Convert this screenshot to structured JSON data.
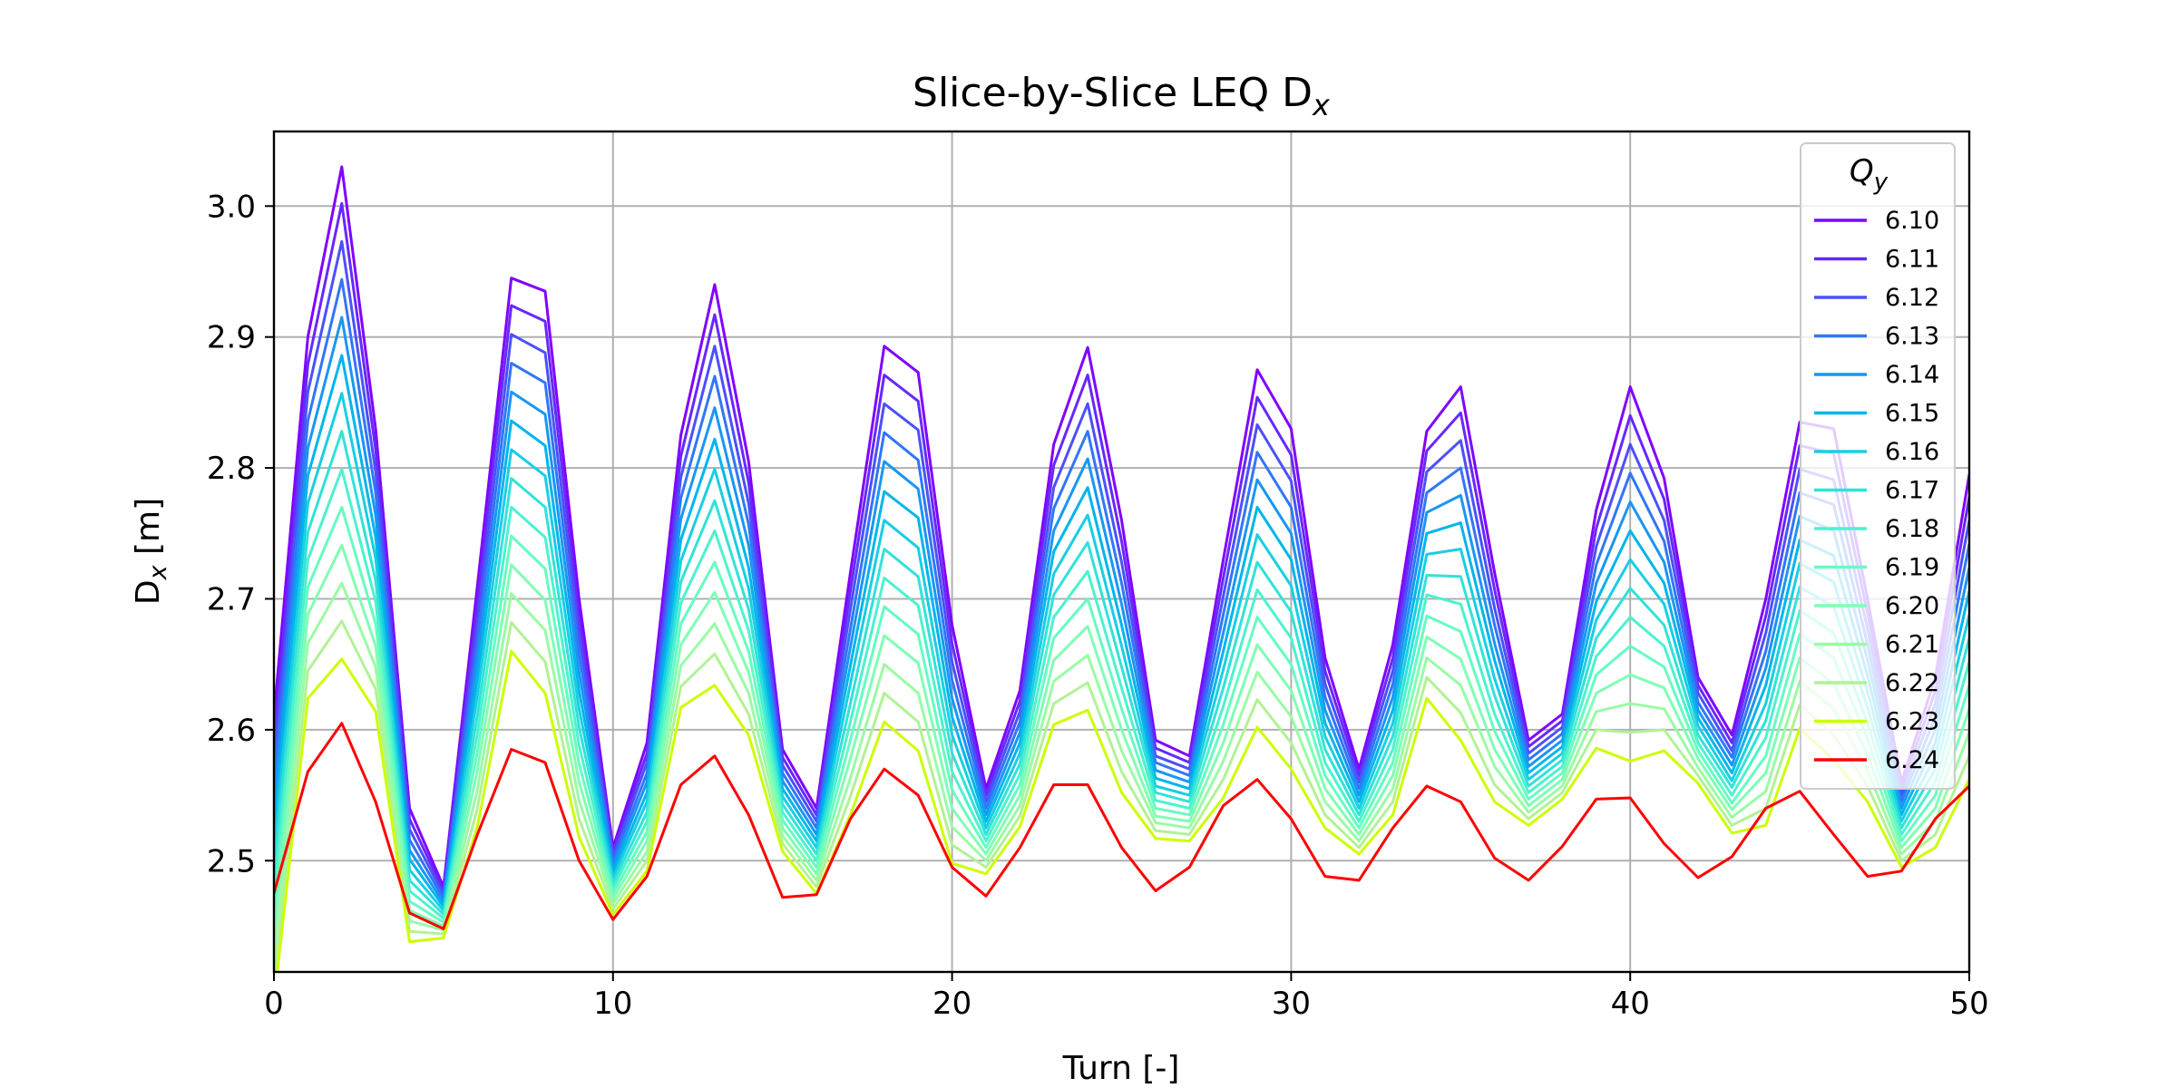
{
  "chart_data": {
    "type": "line",
    "title": "Slice-by-Slice LEQ D",
    "title_sub": "x",
    "xlabel": "Turn [-]",
    "ylabel_main": "D",
    "ylabel_sub": "x",
    "ylabel_unit": " [m]",
    "xlim": [
      0,
      50
    ],
    "ylim": [
      2.415,
      3.057
    ],
    "x_ticks": [
      0,
      10,
      20,
      30,
      40,
      50
    ],
    "y_ticks": [
      2.5,
      2.6,
      2.7,
      2.8,
      2.9,
      3.0
    ],
    "x_tick_labels": [
      "0",
      "10",
      "20",
      "30",
      "40",
      "50"
    ],
    "y_tick_labels": [
      "2.5",
      "2.6",
      "2.7",
      "2.8",
      "2.9",
      "3.0"
    ],
    "grid": true,
    "legend": {
      "position": "top-right",
      "title_main": "Q",
      "title_sub": "y"
    },
    "x": [
      0,
      1,
      2,
      3,
      4,
      5,
      6,
      7,
      8,
      9,
      10,
      11,
      12,
      13,
      14,
      15,
      16,
      17,
      18,
      19,
      20,
      21,
      22,
      23,
      24,
      25,
      26,
      27,
      28,
      29,
      30,
      31,
      32,
      33,
      34,
      35,
      36,
      37,
      38,
      39,
      40,
      41,
      42,
      43,
      44,
      45,
      46,
      47,
      48,
      49,
      50
    ],
    "series": [
      {
        "name": "6.10",
        "color": "#8000ff",
        "values": [
          2.61,
          2.9,
          3.03,
          2.83,
          2.54,
          2.48,
          2.71,
          2.945,
          2.935,
          2.7,
          2.51,
          2.59,
          2.825,
          2.94,
          2.805,
          2.585,
          2.54,
          2.72,
          2.893,
          2.873,
          2.68,
          2.555,
          2.63,
          2.818,
          2.892,
          2.76,
          2.592,
          2.58,
          2.73,
          2.875,
          2.83,
          2.655,
          2.57,
          2.665,
          2.828,
          2.862,
          2.72,
          2.592,
          2.612,
          2.768,
          2.862,
          2.792,
          2.64,
          2.596,
          2.7,
          2.835,
          2.83,
          2.7,
          2.56,
          2.64,
          2.795
        ]
      },
      {
        "name": "6.11",
        "color": "#6629fe",
        "values": [
          2.593,
          2.879,
          3.002,
          2.814,
          2.532,
          2.477,
          2.697,
          2.924,
          2.912,
          2.686,
          2.507,
          2.582,
          2.809,
          2.917,
          2.789,
          2.579,
          2.535,
          2.706,
          2.871,
          2.851,
          2.666,
          2.55,
          2.622,
          2.802,
          2.871,
          2.744,
          2.586,
          2.575,
          2.716,
          2.854,
          2.81,
          2.645,
          2.565,
          2.655,
          2.813,
          2.842,
          2.707,
          2.587,
          2.607,
          2.754,
          2.84,
          2.776,
          2.634,
          2.59,
          2.687,
          2.817,
          2.811,
          2.689,
          2.555,
          2.63,
          2.778
        ]
      },
      {
        "name": "6.12",
        "color": "#4c50fc",
        "values": [
          2.576,
          2.858,
          2.973,
          2.797,
          2.524,
          2.474,
          2.682,
          2.902,
          2.888,
          2.672,
          2.503,
          2.575,
          2.793,
          2.893,
          2.773,
          2.573,
          2.53,
          2.692,
          2.849,
          2.829,
          2.652,
          2.545,
          2.614,
          2.785,
          2.849,
          2.728,
          2.58,
          2.57,
          2.702,
          2.833,
          2.79,
          2.635,
          2.56,
          2.645,
          2.797,
          2.821,
          2.693,
          2.582,
          2.602,
          2.74,
          2.818,
          2.76,
          2.628,
          2.584,
          2.674,
          2.799,
          2.791,
          2.677,
          2.55,
          2.62,
          2.76
        ]
      },
      {
        "name": "6.13",
        "color": "#3176f8",
        "values": [
          2.56,
          2.836,
          2.944,
          2.781,
          2.516,
          2.471,
          2.668,
          2.88,
          2.865,
          2.658,
          2.499,
          2.567,
          2.777,
          2.87,
          2.757,
          2.567,
          2.525,
          2.677,
          2.827,
          2.806,
          2.638,
          2.54,
          2.606,
          2.769,
          2.828,
          2.712,
          2.575,
          2.565,
          2.688,
          2.812,
          2.77,
          2.625,
          2.555,
          2.635,
          2.781,
          2.8,
          2.68,
          2.577,
          2.597,
          2.726,
          2.796,
          2.744,
          2.621,
          2.579,
          2.66,
          2.781,
          2.772,
          2.665,
          2.545,
          2.61,
          2.742
        ]
      },
      {
        "name": "6.14",
        "color": "#1996f3",
        "values": [
          2.543,
          2.815,
          2.915,
          2.764,
          2.508,
          2.468,
          2.654,
          2.858,
          2.841,
          2.644,
          2.495,
          2.56,
          2.761,
          2.846,
          2.741,
          2.561,
          2.52,
          2.663,
          2.805,
          2.784,
          2.624,
          2.535,
          2.598,
          2.752,
          2.807,
          2.696,
          2.569,
          2.56,
          2.674,
          2.791,
          2.75,
          2.615,
          2.55,
          2.625,
          2.766,
          2.779,
          2.666,
          2.572,
          2.592,
          2.712,
          2.774,
          2.728,
          2.615,
          2.573,
          2.647,
          2.763,
          2.752,
          2.653,
          2.54,
          2.6,
          2.724
        ]
      },
      {
        "name": "6.15",
        "color": "#00b5eb",
        "values": [
          2.526,
          2.794,
          2.886,
          2.747,
          2.501,
          2.465,
          2.64,
          2.836,
          2.817,
          2.63,
          2.491,
          2.552,
          2.745,
          2.822,
          2.724,
          2.555,
          2.515,
          2.649,
          2.782,
          2.762,
          2.61,
          2.53,
          2.59,
          2.736,
          2.785,
          2.68,
          2.563,
          2.555,
          2.66,
          2.77,
          2.73,
          2.605,
          2.545,
          2.615,
          2.75,
          2.758,
          2.653,
          2.567,
          2.587,
          2.698,
          2.752,
          2.712,
          2.609,
          2.567,
          2.634,
          2.745,
          2.733,
          2.641,
          2.535,
          2.59,
          2.706
        ]
      },
      {
        "name": "6.16",
        "color": "#19cee3",
        "values": [
          2.509,
          2.773,
          2.857,
          2.731,
          2.493,
          2.462,
          2.626,
          2.814,
          2.794,
          2.616,
          2.487,
          2.545,
          2.729,
          2.799,
          2.708,
          2.549,
          2.51,
          2.635,
          2.76,
          2.739,
          2.596,
          2.525,
          2.582,
          2.719,
          2.764,
          2.664,
          2.557,
          2.55,
          2.646,
          2.749,
          2.71,
          2.595,
          2.54,
          2.605,
          2.734,
          2.738,
          2.639,
          2.562,
          2.582,
          2.684,
          2.73,
          2.696,
          2.603,
          2.561,
          2.62,
          2.727,
          2.713,
          2.629,
          2.53,
          2.58,
          2.688
        ]
      },
      {
        "name": "6.17",
        "color": "#31e2d9",
        "values": [
          2.493,
          2.751,
          2.828,
          2.714,
          2.485,
          2.459,
          2.611,
          2.792,
          2.77,
          2.602,
          2.483,
          2.537,
          2.713,
          2.775,
          2.692,
          2.543,
          2.505,
          2.62,
          2.738,
          2.717,
          2.582,
          2.52,
          2.574,
          2.703,
          2.743,
          2.648,
          2.552,
          2.545,
          2.632,
          2.728,
          2.69,
          2.585,
          2.535,
          2.595,
          2.718,
          2.717,
          2.626,
          2.557,
          2.577,
          2.67,
          2.708,
          2.68,
          2.596,
          2.556,
          2.607,
          2.709,
          2.694,
          2.617,
          2.525,
          2.57,
          2.67
        ]
      },
      {
        "name": "6.18",
        "color": "#4cf2ce",
        "values": [
          2.476,
          2.73,
          2.799,
          2.698,
          2.477,
          2.456,
          2.597,
          2.77,
          2.747,
          2.588,
          2.479,
          2.53,
          2.697,
          2.752,
          2.676,
          2.537,
          2.5,
          2.606,
          2.716,
          2.695,
          2.568,
          2.515,
          2.566,
          2.686,
          2.721,
          2.632,
          2.546,
          2.54,
          2.618,
          2.707,
          2.67,
          2.575,
          2.53,
          2.585,
          2.703,
          2.696,
          2.612,
          2.552,
          2.572,
          2.656,
          2.686,
          2.664,
          2.59,
          2.55,
          2.594,
          2.691,
          2.674,
          2.605,
          2.52,
          2.56,
          2.652
        ]
      },
      {
        "name": "6.19",
        "color": "#66fcc1",
        "values": [
          2.459,
          2.709,
          2.77,
          2.681,
          2.469,
          2.453,
          2.583,
          2.748,
          2.723,
          2.574,
          2.475,
          2.522,
          2.681,
          2.728,
          2.66,
          2.531,
          2.495,
          2.592,
          2.694,
          2.673,
          2.554,
          2.51,
          2.558,
          2.67,
          2.7,
          2.616,
          2.54,
          2.535,
          2.604,
          2.686,
          2.65,
          2.565,
          2.525,
          2.575,
          2.687,
          2.675,
          2.599,
          2.547,
          2.567,
          2.642,
          2.664,
          2.648,
          2.584,
          2.544,
          2.58,
          2.673,
          2.655,
          2.593,
          2.515,
          2.55,
          2.634
        ]
      },
      {
        "name": "6.20",
        "color": "#7fffb4",
        "values": [
          2.442,
          2.688,
          2.741,
          2.664,
          2.462,
          2.45,
          2.569,
          2.726,
          2.699,
          2.56,
          2.471,
          2.515,
          2.665,
          2.705,
          2.644,
          2.525,
          2.49,
          2.578,
          2.672,
          2.651,
          2.54,
          2.505,
          2.55,
          2.653,
          2.679,
          2.6,
          2.534,
          2.53,
          2.59,
          2.665,
          2.63,
          2.555,
          2.52,
          2.565,
          2.671,
          2.654,
          2.585,
          2.542,
          2.562,
          2.628,
          2.642,
          2.632,
          2.578,
          2.539,
          2.567,
          2.655,
          2.635,
          2.581,
          2.51,
          2.54,
          2.616
        ]
      },
      {
        "name": "6.21",
        "color": "#99fca4",
        "values": [
          2.426,
          2.666,
          2.712,
          2.648,
          2.454,
          2.447,
          2.554,
          2.704,
          2.676,
          2.546,
          2.467,
          2.507,
          2.649,
          2.681,
          2.628,
          2.519,
          2.485,
          2.563,
          2.65,
          2.628,
          2.526,
          2.5,
          2.542,
          2.637,
          2.657,
          2.584,
          2.529,
          2.525,
          2.576,
          2.644,
          2.61,
          2.545,
          2.515,
          2.555,
          2.655,
          2.634,
          2.572,
          2.537,
          2.557,
          2.614,
          2.62,
          2.616,
          2.571,
          2.533,
          2.553,
          2.637,
          2.616,
          2.569,
          2.505,
          2.53,
          2.598
        ]
      },
      {
        "name": "6.22",
        "color": "#b2f295",
        "values": [
          2.409,
          2.645,
          2.683,
          2.631,
          2.446,
          2.444,
          2.54,
          2.682,
          2.652,
          2.532,
          2.463,
          2.5,
          2.633,
          2.658,
          2.612,
          2.513,
          2.48,
          2.549,
          2.628,
          2.606,
          2.512,
          2.495,
          2.534,
          2.62,
          2.636,
          2.568,
          2.523,
          2.52,
          2.562,
          2.623,
          2.59,
          2.535,
          2.51,
          2.545,
          2.64,
          2.613,
          2.558,
          2.532,
          2.552,
          2.6,
          2.598,
          2.6,
          2.565,
          2.527,
          2.54,
          2.619,
          2.596,
          2.557,
          2.5,
          2.52,
          2.58
        ]
      },
      {
        "name": "6.23",
        "color": "#ccff00",
        "values": [
          2.392,
          2.624,
          2.654,
          2.614,
          2.438,
          2.441,
          2.526,
          2.66,
          2.628,
          2.518,
          2.459,
          2.492,
          2.617,
          2.634,
          2.596,
          2.507,
          2.475,
          2.535,
          2.606,
          2.584,
          2.498,
          2.49,
          2.526,
          2.604,
          2.615,
          2.552,
          2.517,
          2.515,
          2.548,
          2.602,
          2.57,
          2.525,
          2.505,
          2.535,
          2.624,
          2.592,
          2.545,
          2.527,
          2.547,
          2.586,
          2.576,
          2.584,
          2.559,
          2.521,
          2.527,
          2.601,
          2.577,
          2.545,
          2.495,
          2.51,
          2.562
        ]
      },
      {
        "name": "6.24",
        "color": "#ff0000",
        "values": [
          2.475,
          2.568,
          2.605,
          2.545,
          2.46,
          2.448,
          2.52,
          2.585,
          2.575,
          2.5,
          2.455,
          2.488,
          2.558,
          2.58,
          2.535,
          2.472,
          2.474,
          2.532,
          2.57,
          2.55,
          2.495,
          2.473,
          2.51,
          2.558,
          2.558,
          2.51,
          2.477,
          2.495,
          2.542,
          2.562,
          2.532,
          2.488,
          2.485,
          2.525,
          2.557,
          2.545,
          2.502,
          2.485,
          2.511,
          2.547,
          2.548,
          2.513,
          2.487,
          2.503,
          2.54,
          2.553,
          2.52,
          2.488,
          2.492,
          2.532,
          2.557
        ]
      }
    ]
  }
}
